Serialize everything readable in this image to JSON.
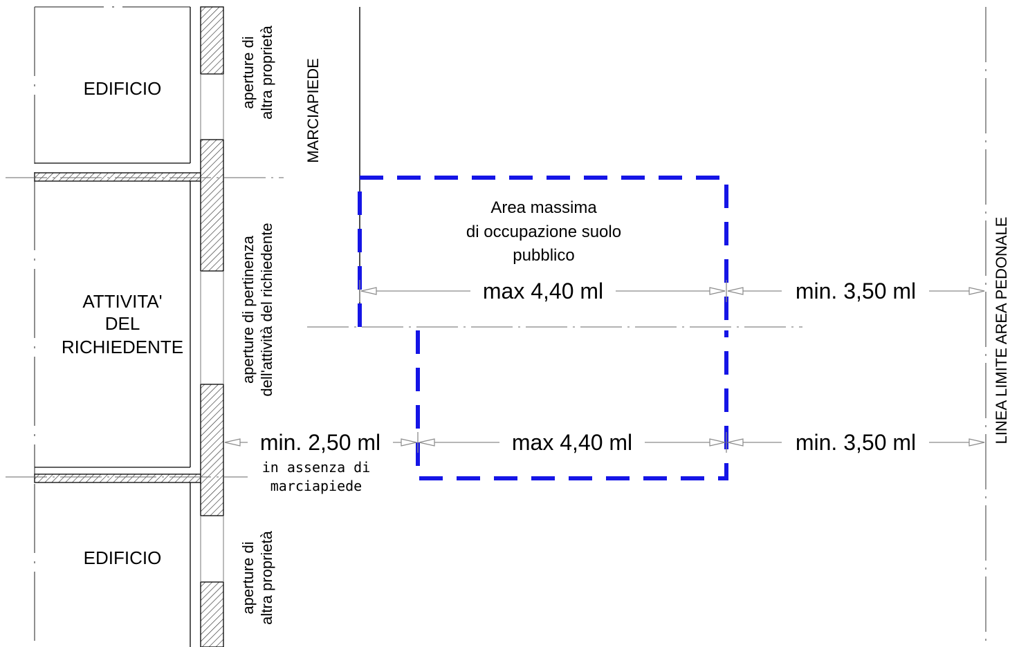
{
  "buildings": {
    "top_label": "EDIFICIO",
    "middle_label_lines": [
      "ATTIVITA'",
      "DEL",
      "RICHIEDENTE"
    ],
    "bottom_label": "EDIFICIO"
  },
  "openings": {
    "top_lines": [
      "aperture di",
      "altra proprietà"
    ],
    "middle_lines": [
      "aperture di pertinenza",
      "dell'attività del richiedente"
    ],
    "bottom_lines": [
      "aperture di",
      "altra proprietà"
    ]
  },
  "sidewalk_label": "MARCIAPIEDE",
  "occupation_area_lines": [
    "Area massima",
    "di occupazione suolo",
    "pubblico"
  ],
  "dimensions": {
    "upper_max": "max 4,40 ml",
    "upper_min": "min. 3,50 ml",
    "lower_left_min": "min. 2,50 ml",
    "lower_left_note_lines": [
      "in assenza di",
      "marciapiede"
    ],
    "lower_max": "max 4,40 ml",
    "lower_min": "min. 3,50 ml"
  },
  "pedestrian_limit_label": "LINEA  LIMITE  AREA  PEDONALE",
  "colors": {
    "occupation_outline": "#1515e6",
    "lines": "#000000",
    "dim_lines": "#8a8a8a"
  }
}
